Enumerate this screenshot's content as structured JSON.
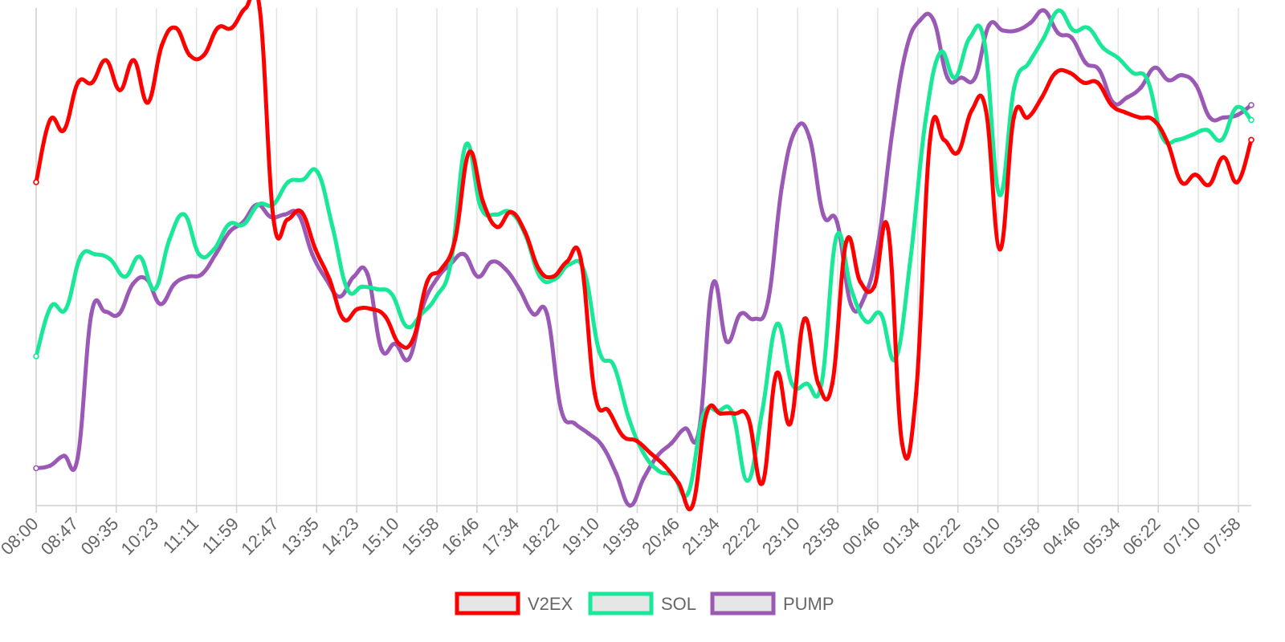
{
  "chart_data": {
    "type": "line",
    "title": "",
    "xlabel": "",
    "ylabel": "",
    "grid": "vertical",
    "legend": "bottom-center",
    "x_tick_labels": [
      "08:00",
      "08:47",
      "09:35",
      "10:23",
      "11:11",
      "11:59",
      "12:47",
      "13:35",
      "14:23",
      "15:10",
      "15:58",
      "16:46",
      "17:34",
      "18:22",
      "19:10",
      "19:58",
      "20:46",
      "21:34",
      "22:22",
      "23:10",
      "23:58",
      "00:46",
      "01:34",
      "02:22",
      "03:10",
      "03:58",
      "04:46",
      "05:34",
      "06:22",
      "07:10",
      "07:58"
    ],
    "ylim": [
      0,
      100
    ],
    "series": [
      {
        "name": "V2EX",
        "color": "#ff0000",
        "values": [
          65.0,
          77.5,
          75.5,
          85.0,
          85.0,
          89.5,
          83.5,
          89.5,
          81.0,
          92.5,
          96.0,
          90.5,
          90.5,
          96.0,
          96.0,
          100.0,
          100.0,
          57.5,
          57.5,
          59.0,
          51.5,
          45.5,
          37.5,
          39.5,
          39.5,
          38.0,
          32.5,
          33.5,
          45.0,
          47.5,
          53.5,
          71.0,
          61.0,
          56.0,
          59.0,
          55.0,
          47.5,
          46.0,
          49.0,
          49.5,
          22.5,
          19.0,
          14.0,
          13.0,
          10.5,
          8.0,
          4.5,
          0.0,
          18.5,
          18.5,
          18.5,
          17.5,
          4.5,
          26.5,
          16.5,
          37.5,
          24.5,
          24.5,
          53.0,
          45.0,
          44.0,
          55.5,
          12.5,
          22.5,
          73.5,
          73.5,
          71.0,
          79.5,
          79.5,
          51.5,
          78.0,
          78.0,
          82.0,
          87.0,
          87.0,
          85.0,
          85.0,
          80.5,
          79.0,
          78.0,
          77.5,
          73.0,
          65.0,
          66.5,
          64.5,
          70.0,
          65.0,
          73.5
        ]
      },
      {
        "name": "SOL",
        "color": "#18e898",
        "values": [
          30.0,
          40.0,
          39.5,
          50.0,
          50.5,
          49.5,
          46.0,
          50.0,
          43.5,
          53.5,
          58.5,
          50.5,
          51.5,
          56.5,
          56.5,
          60.5,
          60.5,
          65.0,
          65.5,
          67.0,
          56.0,
          43.5,
          44.0,
          43.5,
          42.5,
          36.0,
          38.5,
          42.0,
          49.0,
          72.5,
          60.0,
          58.5,
          59.0,
          54.5,
          46.0,
          45.5,
          48.5,
          47.0,
          31.0,
          28.0,
          17.5,
          10.5,
          7.0,
          6.0,
          2.5,
          18.0,
          19.0,
          18.5,
          5.0,
          19.0,
          36.5,
          24.5,
          24.5,
          24.5,
          54.0,
          43.5,
          37.0,
          38.5,
          29.5,
          49.5,
          77.0,
          91.0,
          86.0,
          94.0,
          93.0,
          62.5,
          84.0,
          89.0,
          94.0,
          99.5,
          95.5,
          96.0,
          92.0,
          90.0,
          87.0,
          85.5,
          74.0,
          73.5,
          74.5,
          75.5,
          73.5,
          80.0,
          77.5
        ]
      },
      {
        "name": "PUMP",
        "color": "#9b59b6",
        "values": [
          7.5,
          8.0,
          10.0,
          9.5,
          38.5,
          39.0,
          38.5,
          44.5,
          45.5,
          40.5,
          44.5,
          46.0,
          46.5,
          50.5,
          55.0,
          57.0,
          60.5,
          58.0,
          58.5,
          58.5,
          50.5,
          45.5,
          42.0,
          46.0,
          46.5,
          31.5,
          32.5,
          29.5,
          40.0,
          45.5,
          48.5,
          50.5,
          46.0,
          49.0,
          47.5,
          43.5,
          38.5,
          38.5,
          19.5,
          16.5,
          14.5,
          12.0,
          6.5,
          0.0,
          5.5,
          10.0,
          12.5,
          15.5,
          15.0,
          44.5,
          33.0,
          38.5,
          37.5,
          41.0,
          64.0,
          75.5,
          74.0,
          58.5,
          57.0,
          40.5,
          42.0,
          53.0,
          75.0,
          91.5,
          97.5,
          97.5,
          86.0,
          86.0,
          86.0,
          96.5,
          95.5,
          95.5,
          97.0,
          99.5,
          95.0,
          94.0,
          89.0,
          87.5,
          81.0,
          82.0,
          84.0,
          88.0,
          85.5,
          86.5,
          84.5,
          78.0,
          78.0,
          78.5,
          80.5
        ]
      }
    ]
  }
}
